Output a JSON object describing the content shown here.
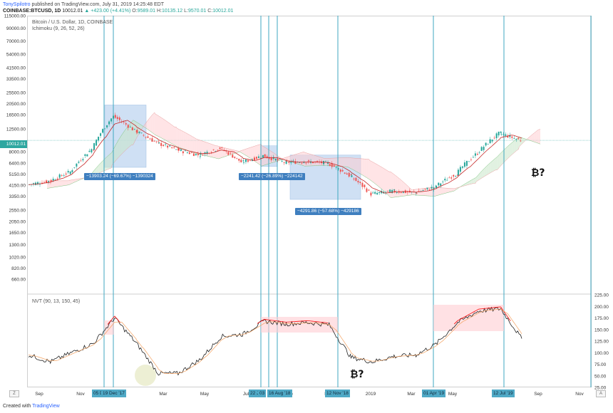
{
  "header": {
    "author": "TonySpilotro",
    "published": "published on TradingView.com, July 31, 2019 14:25:48 EDT",
    "symbol": "COINBASE:BTCUSD, 1D",
    "last": "10012.01",
    "change": "▲ +423.00 (+4.41%)",
    "open_label": "O:",
    "open": "9589.01",
    "high_label": "H:",
    "high": "10135.12",
    "low_label": "L:",
    "low": "9570.01",
    "close_label": "C:",
    "close": "10012.01"
  },
  "main_pane": {
    "title": "Bitcoin / U.S. Dollar, 1D, COINBASE",
    "indicator": "Ichimoku (9, 26, 52, 26)",
    "price_tag": "10012.01",
    "box_labels": [
      "−13903.24 (−69.67%) −1390324",
      "−2241.42 (−26.89%) −224142",
      "−4291.86 (−57.68%) −429186"
    ]
  },
  "nvt_pane": {
    "title": "NVT (90, 13, 150, 45)"
  },
  "annotations": {
    "btc_question": "₿?"
  },
  "date_labels": [
    "05 D",
    "19 Dec '17",
    "22 J",
    "03",
    "16 Aug '18",
    "12 Nov '18",
    "01 Apr '19",
    "12 Jul '19"
  ],
  "axis_buttons": {
    "left": "Z",
    "right": "A"
  },
  "footer": {
    "created": "Created with",
    "brand": "TradingView"
  },
  "colors": {
    "candle_up": "#26a69a",
    "candle_down": "#ef5350",
    "cloud_bull": "#c8e6c9",
    "cloud_bear": "#ffcdd2",
    "box_fill": "#bbd3f0",
    "vline": "#3fa7c0",
    "nvt_high": "#ff0000"
  },
  "chart_data": [
    {
      "type": "line",
      "title": "Bitcoin / U.S. Dollar, 1D, COINBASE",
      "scale": "log",
      "ylim": [
        500,
        115000
      ],
      "y_ticks": [
        115000,
        90000,
        70000,
        54000,
        41500,
        33500,
        25500,
        20500,
        16500,
        12500,
        10012.01,
        8000,
        6400,
        5150,
        4150,
        3350,
        2550,
        2050,
        1650,
        1300,
        1020,
        820,
        660
      ],
      "x_ticks": [
        "Sep",
        "Nov",
        "Jan",
        "Mar",
        "May",
        "Jul",
        "Sep",
        "Nov",
        "2019",
        "Mar",
        "May",
        "Jul",
        "Sep",
        "Nov"
      ],
      "x": [
        "2017-08",
        "2017-09",
        "2017-10",
        "2017-11",
        "2017-12",
        "2018-01",
        "2018-02",
        "2018-03",
        "2018-04",
        "2018-05",
        "2018-06",
        "2018-07",
        "2018-08",
        "2018-09",
        "2018-10",
        "2018-11",
        "2018-12",
        "2019-01",
        "2019-02",
        "2019-03",
        "2019-04",
        "2019-05",
        "2019-06",
        "2019-07"
      ],
      "series": [
        {
          "values": [
            4200,
            4500,
            5400,
            8500,
            16000,
            12000,
            9500,
            8300,
            7500,
            8600,
            6500,
            7400,
            6500,
            6600,
            6400,
            5000,
            3500,
            3700,
            3600,
            4000,
            5200,
            7800,
            11500,
            10012
          ]
        }
      ]
    },
    {
      "type": "line",
      "title": "NVT (90, 13, 150, 45)",
      "ylim": [
        25,
        225
      ],
      "y_ticks": [
        225,
        200,
        175,
        150,
        125,
        100,
        75,
        50,
        25
      ],
      "x": [
        "2017-08",
        "2017-09",
        "2017-10",
        "2017-11",
        "2017-12",
        "2018-01",
        "2018-02",
        "2018-03",
        "2018-04",
        "2018-05",
        "2018-06",
        "2018-07",
        "2018-08",
        "2018-09",
        "2018-10",
        "2018-11",
        "2018-12",
        "2019-01",
        "2019-02",
        "2019-03",
        "2019-04",
        "2019-05",
        "2019-06",
        "2019-07"
      ],
      "series": [
        {
          "values": [
            95,
            80,
            100,
            120,
            175,
            120,
            55,
            55,
            85,
            135,
            140,
            168,
            162,
            165,
            160,
            90,
            80,
            92,
            95,
            118,
            165,
            190,
            195,
            130
          ]
        }
      ]
    }
  ]
}
